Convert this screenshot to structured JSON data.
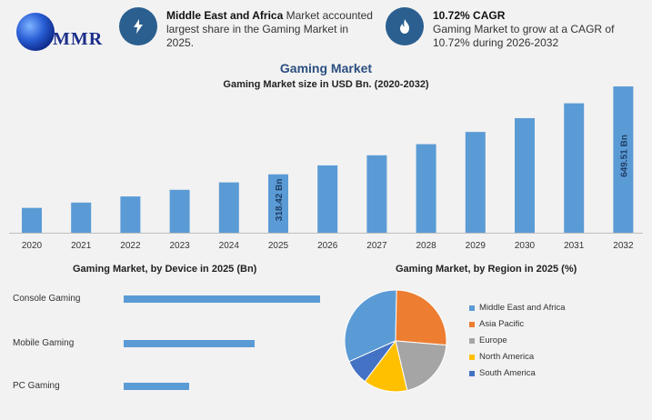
{
  "header": {
    "logo_text": "MMR",
    "info1": {
      "bold": "Middle East and Africa",
      "text": " Market accounted largest share in the Gaming Market in 2025."
    },
    "info2": {
      "bold": "10.72% CAGR",
      "text": "Gaming Market to grow at a CAGR of 10.72% during 2026-2032"
    }
  },
  "colors": {
    "bar": "#5b9bd5",
    "title": "#2b4f7f",
    "icon_bg": "#2b5f8f"
  },
  "chart_data": [
    {
      "type": "bar",
      "title": "Gaming Market",
      "subtitle": "Gaming Market size in USD Bn. (2020-2032)",
      "categories": [
        "2020",
        "2021",
        "2022",
        "2023",
        "2024",
        "2025",
        "2026",
        "2027",
        "2028",
        "2029",
        "2030",
        "2031",
        "2032"
      ],
      "values": [
        192,
        212,
        235,
        260,
        288,
        318.42,
        352,
        390,
        432,
        478,
        530,
        586,
        649.51
      ],
      "data_labels": {
        "2025": "318.42 Bn",
        "2032": "649.51 Bn"
      },
      "ylim": [
        160,
        660
      ],
      "grid": false
    },
    {
      "type": "bar",
      "orientation": "horizontal",
      "title": "Gaming Market, by Device in 2025 (Bn)",
      "categories": [
        "Console Gaming",
        "Mobile Gaming",
        "PC Gaming"
      ],
      "values": [
        135,
        90,
        45
      ],
      "xlim": [
        0,
        135
      ]
    },
    {
      "type": "pie",
      "title": "Gaming Market, by Region in 2025 (%)",
      "labels": [
        "Middle East and Africa",
        "Asia Pacific",
        "Europe",
        "North America",
        "South America"
      ],
      "values": [
        32,
        26,
        20,
        14,
        8
      ],
      "colors": [
        "#5b9bd5",
        "#ed7d31",
        "#a5a5a5",
        "#ffc000",
        "#4472c4"
      ],
      "legend_position": "right"
    }
  ]
}
